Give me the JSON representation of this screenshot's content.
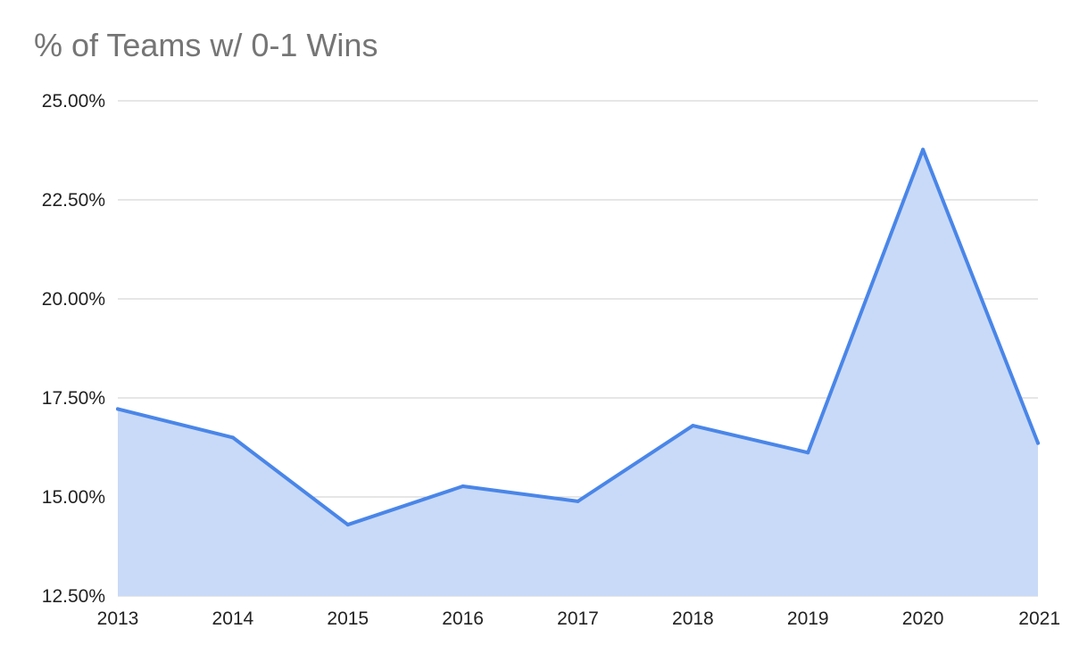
{
  "chart_data": {
    "type": "area",
    "title": "% of Teams w/ 0-1 Wins",
    "xlabel": "",
    "ylabel": "",
    "categories": [
      "2013",
      "2014",
      "2015",
      "2016",
      "2017",
      "2018",
      "2019",
      "2020",
      "2021"
    ],
    "series": [
      {
        "values": [
          17.22,
          16.5,
          14.3,
          15.27,
          14.89,
          16.8,
          16.12,
          23.77,
          16.36
        ]
      }
    ],
    "ylim": [
      12.5,
      25
    ],
    "yticks": [
      12.5,
      15,
      17.5,
      20,
      22.5,
      25
    ],
    "ytick_labels": [
      "12.50%",
      "15.00%",
      "17.50%",
      "20.00%",
      "22.50%",
      "25.00%"
    ],
    "grid": true,
    "legend": "none",
    "colors": {
      "line": "#4a86e8",
      "fill": "#c9daf8",
      "grid": "#cccccc",
      "title": "#757575",
      "labels": "#222222"
    }
  }
}
